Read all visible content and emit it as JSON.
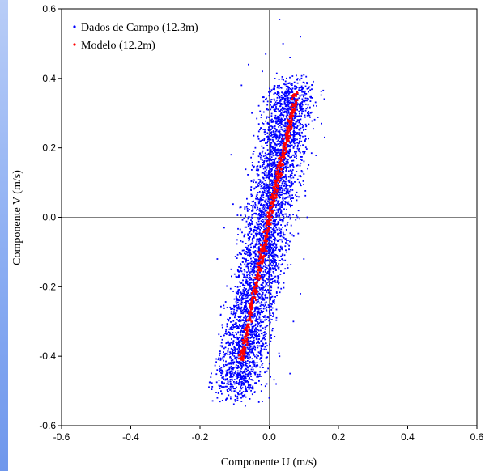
{
  "chart_data": {
    "type": "scatter",
    "xlabel": "Componente U (m/s)",
    "ylabel": "Componente V (m/s)",
    "xlim": [
      -0.6,
      0.6
    ],
    "ylim": [
      -0.6,
      0.6
    ],
    "xticks": [
      -0.6,
      -0.4,
      -0.2,
      0.0,
      0.2,
      0.4,
      0.6
    ],
    "yticks": [
      -0.6,
      -0.4,
      -0.2,
      0.0,
      0.2,
      0.4,
      0.6
    ],
    "x_tick_labels": [
      "-0.6",
      "-0.4",
      "-0.2",
      "0.0",
      "0.2",
      "0.4",
      "0.6"
    ],
    "y_tick_labels": [
      "-0.6",
      "-0.4",
      "-0.2",
      "0.0",
      "0.2",
      "0.4",
      "0.6"
    ],
    "grid": false,
    "zero_lines": true,
    "legend_position": "top-left",
    "series": [
      {
        "name": "Dados de Campo (12.3m)",
        "color": "#0000ff",
        "marker": "dot",
        "points": [
          [
            0.03,
            0.57
          ],
          [
            0.09,
            0.52
          ],
          [
            0.04,
            0.5
          ],
          [
            -0.01,
            0.47
          ],
          [
            0.06,
            0.46
          ],
          [
            -0.06,
            0.44
          ],
          [
            0.1,
            0.41
          ],
          [
            0.11,
            0.37
          ],
          [
            0.16,
            0.23
          ],
          [
            0.08,
            0.33
          ],
          [
            -0.08,
            0.38
          ],
          [
            -0.05,
            0.3
          ],
          [
            0.0,
            0.35
          ],
          [
            0.05,
            0.4
          ],
          [
            -0.02,
            0.42
          ],
          [
            -0.11,
            0.18
          ],
          [
            -0.13,
            -0.03
          ],
          [
            -0.15,
            -0.12
          ],
          [
            -0.14,
            -0.28
          ],
          [
            -0.13,
            -0.34
          ],
          [
            -0.12,
            -0.45
          ],
          [
            -0.15,
            -0.52
          ],
          [
            -0.1,
            -0.5
          ],
          [
            -0.08,
            -0.53
          ],
          [
            -0.05,
            -0.49
          ],
          [
            -0.02,
            -0.53
          ],
          [
            0.02,
            -0.48
          ],
          [
            0.03,
            -0.4
          ],
          [
            0.07,
            -0.3
          ],
          [
            0.09,
            -0.22
          ],
          [
            0.1,
            -0.12
          ],
          [
            0.11,
            0.0
          ],
          [
            0.09,
            0.12
          ],
          [
            0.06,
            -0.45
          ],
          [
            0.0,
            -0.52
          ],
          [
            0.12,
            0.3
          ],
          [
            0.05,
            0.09
          ],
          [
            -0.04,
            0.2
          ],
          [
            -0.09,
            -0.05
          ],
          [
            0.08,
            0.06
          ]
        ],
        "density_note": "about 5000 additional dense points concentrated in a band along V ≈ 5·U between V -0.5 and 0.5"
      },
      {
        "name": "Modelo (12.2m)",
        "color": "#ff0000",
        "marker": "dot",
        "relationship": "linear, from (-0.08, -0.41) to (0.08, 0.36)",
        "points": [
          [
            -0.08,
            -0.41
          ],
          [
            -0.07,
            -0.36
          ],
          [
            -0.06,
            -0.31
          ],
          [
            -0.05,
            -0.25
          ],
          [
            -0.04,
            -0.2
          ],
          [
            -0.03,
            -0.15
          ],
          [
            -0.02,
            -0.1
          ],
          [
            -0.01,
            -0.06
          ],
          [
            0.0,
            -0.01
          ],
          [
            0.01,
            0.04
          ],
          [
            0.02,
            0.09
          ],
          [
            0.03,
            0.14
          ],
          [
            0.04,
            0.18
          ],
          [
            0.05,
            0.23
          ],
          [
            0.06,
            0.27
          ],
          [
            0.07,
            0.31
          ],
          [
            0.08,
            0.36
          ]
        ]
      }
    ]
  }
}
